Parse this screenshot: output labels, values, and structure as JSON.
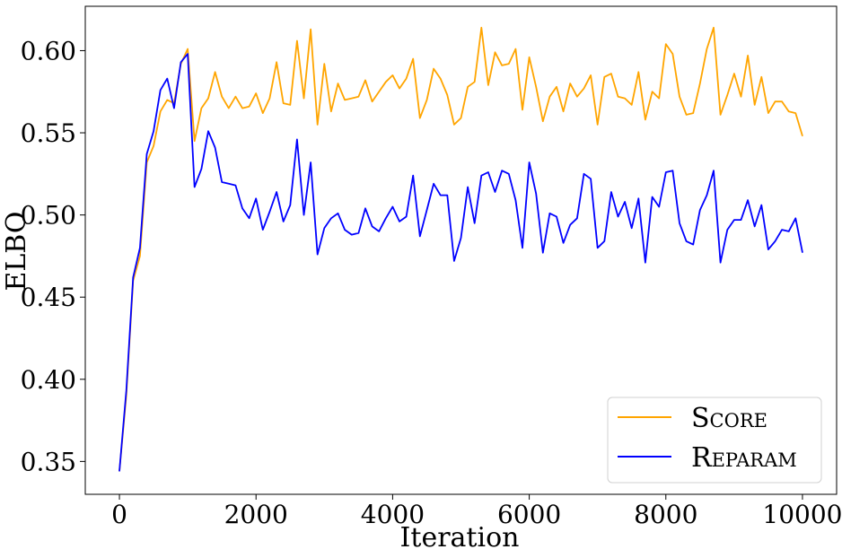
{
  "chart_data": {
    "type": "line",
    "xlabel": "Iteration",
    "ylabel": "ELBO",
    "xlim": [
      -500,
      10500
    ],
    "ylim": [
      0.33,
      0.627
    ],
    "xticks": [
      0,
      2000,
      4000,
      6000,
      8000,
      10000
    ],
    "xtick_labels": [
      "0",
      "2000",
      "4000",
      "6000",
      "8000",
      "10000"
    ],
    "yticks": [
      0.35,
      0.4,
      0.45,
      0.5,
      0.55,
      0.6
    ],
    "ytick_labels": [
      "0.35",
      "0.40",
      "0.45",
      "0.50",
      "0.55",
      "0.60"
    ],
    "grid": false,
    "legend_position": "bottom-right",
    "x": [
      0,
      100,
      200,
      300,
      400,
      500,
      600,
      700,
      800,
      900,
      1000,
      1100,
      1200,
      1300,
      1400,
      1500,
      1600,
      1700,
      1800,
      1900,
      2000,
      2100,
      2200,
      2300,
      2400,
      2500,
      2600,
      2700,
      2800,
      2900,
      3000,
      3100,
      3200,
      3300,
      3400,
      3500,
      3600,
      3700,
      3800,
      3900,
      4000,
      4100,
      4200,
      4300,
      4400,
      4500,
      4600,
      4700,
      4800,
      4900,
      5000,
      5100,
      5200,
      5300,
      5400,
      5500,
      5600,
      5700,
      5800,
      5900,
      6000,
      6100,
      6200,
      6300,
      6400,
      6500,
      6600,
      6700,
      6800,
      6900,
      7000,
      7100,
      7200,
      7300,
      7400,
      7500,
      7600,
      7700,
      7800,
      7900,
      8000,
      8100,
      8200,
      8300,
      8400,
      8500,
      8600,
      8700,
      8800,
      8900,
      9000,
      9100,
      9200,
      9300,
      9400,
      9500,
      9600,
      9700,
      9800,
      9900,
      10000
    ],
    "series": [
      {
        "name": "Score",
        "color": "#FFA500",
        "values": [
          0.344,
          0.39,
          0.46,
          0.475,
          0.532,
          0.542,
          0.563,
          0.57,
          0.568,
          0.592,
          0.601,
          0.545,
          0.565,
          0.571,
          0.587,
          0.572,
          0.565,
          0.572,
          0.565,
          0.566,
          0.574,
          0.562,
          0.571,
          0.593,
          0.568,
          0.567,
          0.606,
          0.571,
          0.613,
          0.555,
          0.592,
          0.563,
          0.58,
          0.57,
          0.571,
          0.572,
          0.582,
          0.569,
          0.575,
          0.581,
          0.585,
          0.577,
          0.583,
          0.595,
          0.559,
          0.57,
          0.589,
          0.583,
          0.573,
          0.555,
          0.559,
          0.578,
          0.581,
          0.614,
          0.579,
          0.599,
          0.591,
          0.592,
          0.601,
          0.564,
          0.596,
          0.578,
          0.557,
          0.572,
          0.578,
          0.563,
          0.58,
          0.572,
          0.577,
          0.585,
          0.555,
          0.584,
          0.586,
          0.572,
          0.571,
          0.567,
          0.587,
          0.558,
          0.575,
          0.571,
          0.604,
          0.598,
          0.572,
          0.561,
          0.562,
          0.58,
          0.601,
          0.614,
          0.561,
          0.573,
          0.586,
          0.572,
          0.597,
          0.567,
          0.584,
          0.562,
          0.569,
          0.569,
          0.563,
          0.562,
          0.548
        ]
      },
      {
        "name": "Reparam",
        "color": "#0000FF",
        "values": [
          0.344,
          0.393,
          0.462,
          0.48,
          0.537,
          0.551,
          0.576,
          0.583,
          0.565,
          0.593,
          0.598,
          0.517,
          0.528,
          0.551,
          0.541,
          0.52,
          0.519,
          0.518,
          0.504,
          0.498,
          0.51,
          0.491,
          0.502,
          0.514,
          0.496,
          0.506,
          0.546,
          0.5,
          0.532,
          0.476,
          0.492,
          0.498,
          0.501,
          0.491,
          0.488,
          0.489,
          0.504,
          0.493,
          0.49,
          0.498,
          0.505,
          0.496,
          0.499,
          0.524,
          0.487,
          0.503,
          0.519,
          0.512,
          0.512,
          0.472,
          0.486,
          0.517,
          0.495,
          0.524,
          0.526,
          0.514,
          0.527,
          0.525,
          0.509,
          0.48,
          0.532,
          0.513,
          0.477,
          0.501,
          0.499,
          0.483,
          0.494,
          0.498,
          0.525,
          0.522,
          0.48,
          0.484,
          0.514,
          0.499,
          0.508,
          0.492,
          0.51,
          0.471,
          0.511,
          0.505,
          0.526,
          0.527,
          0.495,
          0.484,
          0.482,
          0.503,
          0.512,
          0.527,
          0.471,
          0.491,
          0.497,
          0.497,
          0.509,
          0.493,
          0.506,
          0.479,
          0.484,
          0.491,
          0.49,
          0.498,
          0.477
        ]
      }
    ]
  }
}
